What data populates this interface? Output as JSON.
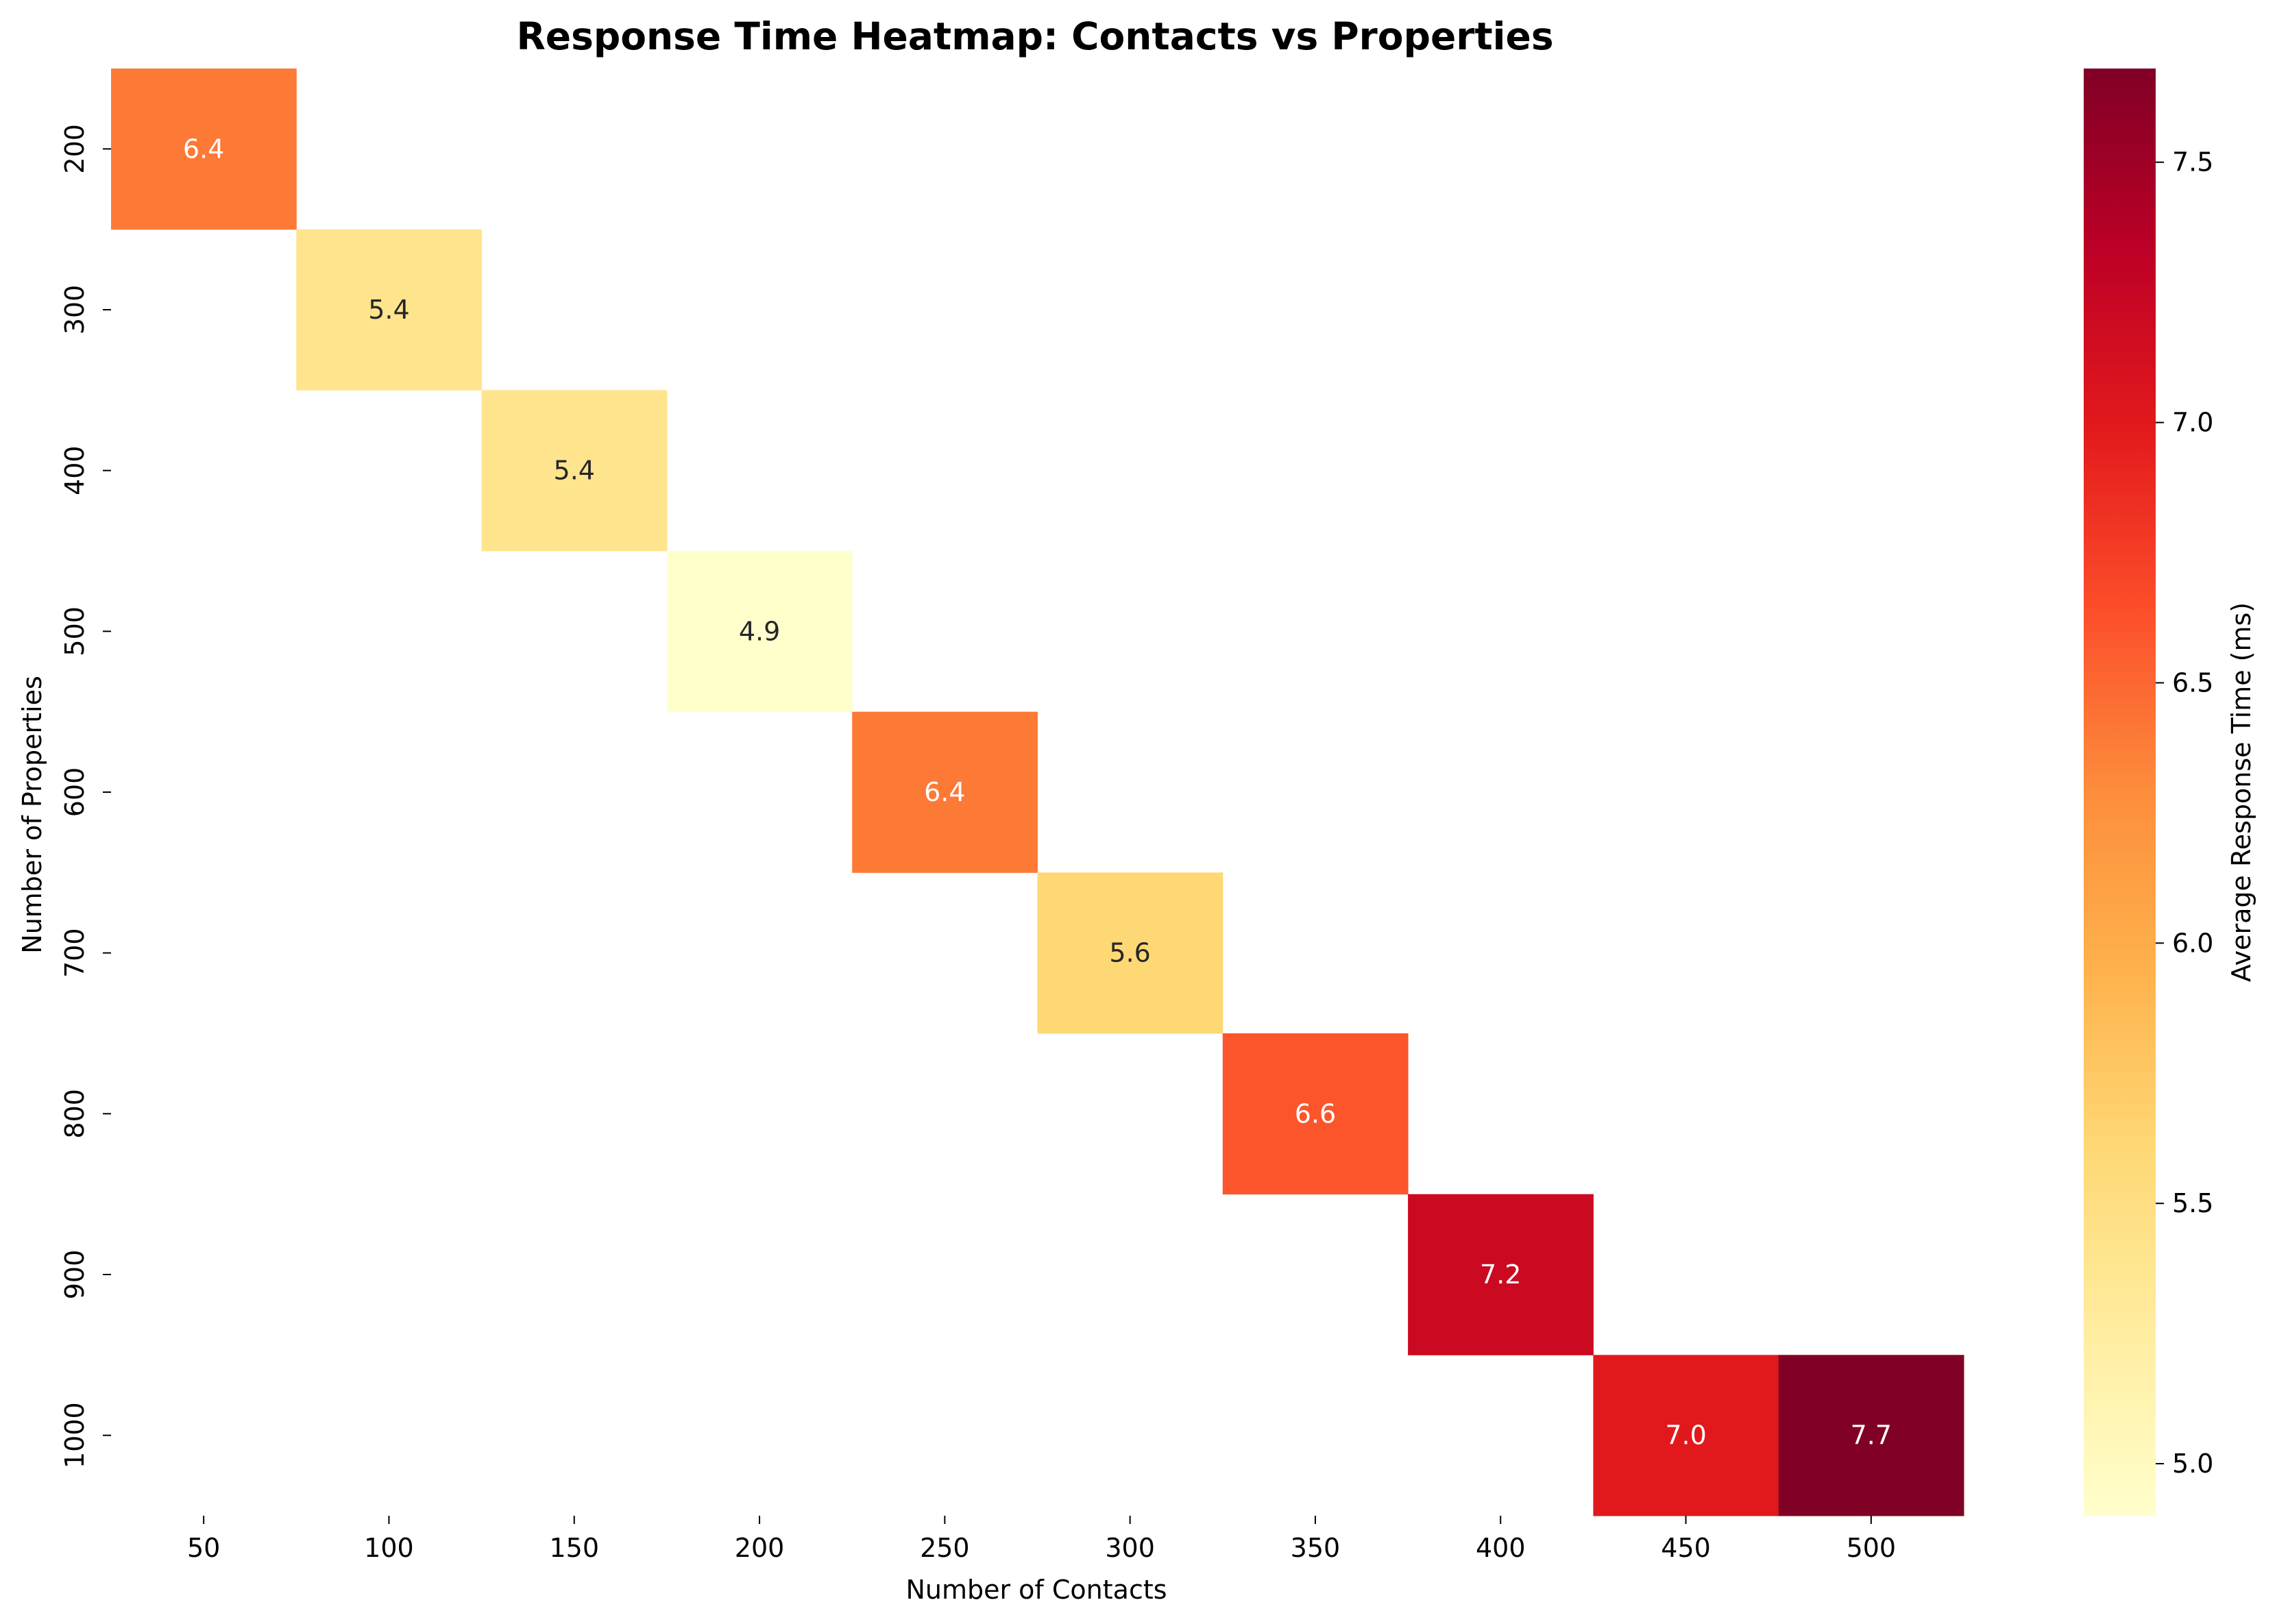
{
  "chart_data": {
    "type": "heatmap",
    "title": "Response Time Heatmap: Contacts vs Properties",
    "xlabel": "Number of Contacts",
    "ylabel": "Number of Properties",
    "x_categories": [
      "50",
      "100",
      "150",
      "200",
      "250",
      "300",
      "350",
      "400",
      "450",
      "500"
    ],
    "y_categories": [
      "200",
      "300",
      "400",
      "500",
      "600",
      "700",
      "800",
      "900",
      "1000"
    ],
    "cells": [
      {
        "x": "50",
        "y": "200",
        "value": 6.4,
        "label": "6.4"
      },
      {
        "x": "100",
        "y": "300",
        "value": 5.4,
        "label": "5.4"
      },
      {
        "x": "150",
        "y": "400",
        "value": 5.4,
        "label": "5.4"
      },
      {
        "x": "200",
        "y": "500",
        "value": 4.9,
        "label": "4.9"
      },
      {
        "x": "250",
        "y": "600",
        "value": 6.4,
        "label": "6.4"
      },
      {
        "x": "300",
        "y": "700",
        "value": 5.6,
        "label": "5.6"
      },
      {
        "x": "350",
        "y": "800",
        "value": 6.6,
        "label": "6.6"
      },
      {
        "x": "400",
        "y": "900",
        "value": 7.2,
        "label": "7.2"
      },
      {
        "x": "450",
        "y": "1000",
        "value": 7.0,
        "label": "7.0"
      },
      {
        "x": "500",
        "y": "1000",
        "value": 7.7,
        "label": "7.7"
      }
    ],
    "colorbar": {
      "label": "Average Response Time (ms)",
      "range": [
        4.9,
        7.68
      ],
      "ticks": [
        "5.0",
        "5.5",
        "6.0",
        "6.5",
        "7.0",
        "7.5"
      ],
      "colormap": "YlOrRd"
    },
    "grid": false
  }
}
